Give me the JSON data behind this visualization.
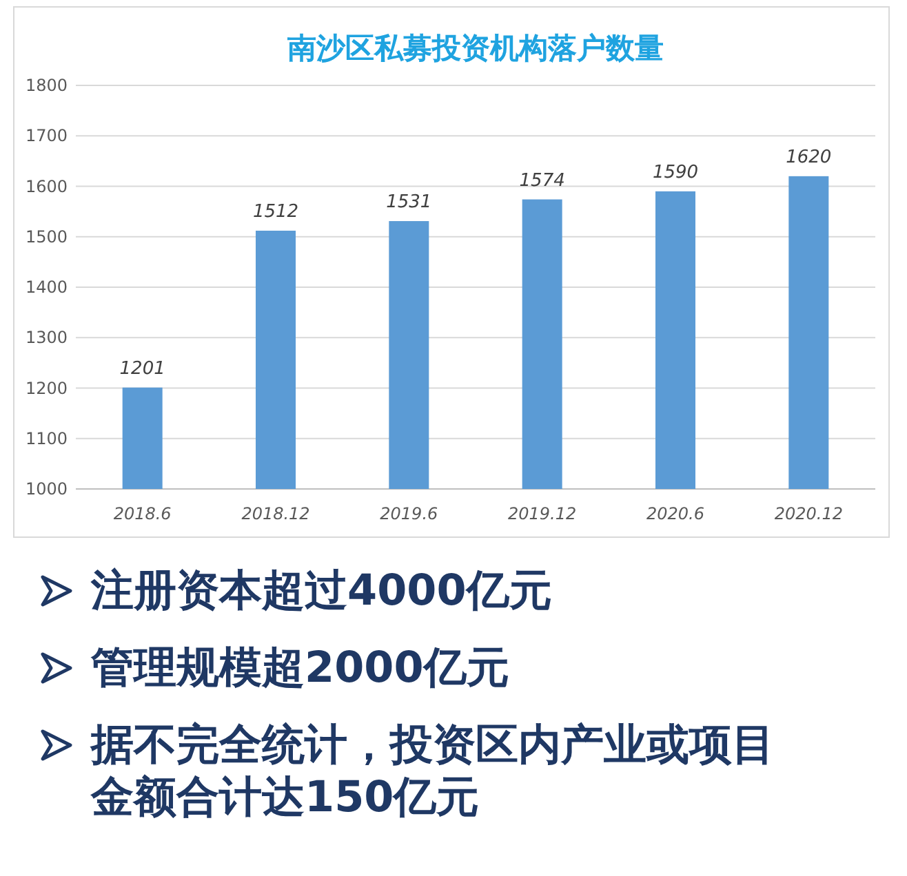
{
  "chart_data": {
    "type": "bar",
    "title": "南沙区私募投资机构落户数量",
    "categories": [
      "2018.6",
      "2018.12",
      "2019.6",
      "2019.12",
      "2020.6",
      "2020.12"
    ],
    "values": [
      1201,
      1512,
      1531,
      1574,
      1590,
      1620
    ],
    "color": "#5b9bd5",
    "ylim": [
      1000,
      1800
    ],
    "yticks": [
      1000,
      1100,
      1200,
      1300,
      1400,
      1500,
      1600,
      1700,
      1800
    ],
    "grid": "y",
    "data_labels": true,
    "annotations": [
      "注册资本超过4000亿元",
      "管理规模超2000亿元",
      "据不完全统计，投资区内产业或项目金额合计达150亿元"
    ]
  }
}
